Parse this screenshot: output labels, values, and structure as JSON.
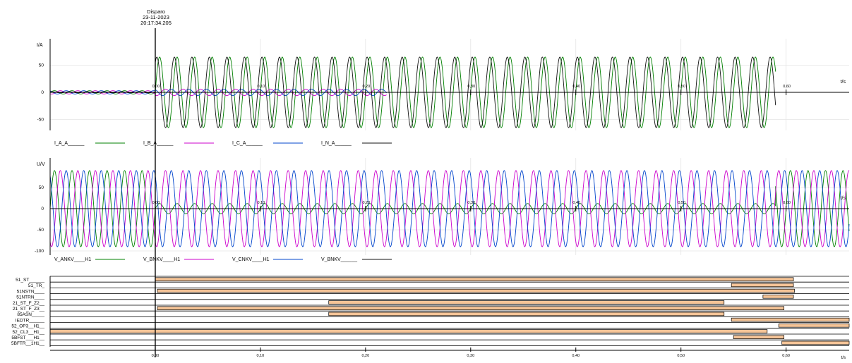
{
  "trigger": {
    "label": "Disparo",
    "date": "23-11-2023",
    "time": "20:17:34.205"
  },
  "chart_data": [
    {
      "type": "line",
      "title": "",
      "xlabel": "t/s",
      "ylabel": "I/A",
      "ylim": [
        -80,
        95
      ],
      "xlim": [
        -0.1,
        0.66
      ],
      "x_ticks": [
        0.0,
        0.1,
        0.2,
        0.3,
        0.4,
        0.5,
        0.6
      ],
      "x_tick_labels": [
        "0,00",
        "0,10",
        "0,20",
        "0,30",
        "0,40",
        "0,50",
        "0,60"
      ],
      "y_ticks": [
        50,
        0,
        -50
      ],
      "y_tick_labels": [
        "50",
        "0",
        "-50"
      ],
      "grid": true,
      "legend_position": "bottom",
      "series": [
        {
          "name": "I_A_A______",
          "color": "#008000",
          "frequency_hz": 60,
          "segments": [
            {
              "t0": -0.1,
              "t1": 0.0,
              "amplitude": 3
            },
            {
              "t0": 0.0,
              "t1": 0.59,
              "amplitude": 65
            }
          ]
        },
        {
          "name": "I_B_A______",
          "color": "#cc00cc",
          "frequency_hz": 60,
          "segments": [
            {
              "t0": -0.1,
              "t1": 0.0,
              "amplitude": 3
            },
            {
              "t0": 0.0,
              "t1": 0.22,
              "amplitude": 6
            }
          ]
        },
        {
          "name": "I_C_A______",
          "color": "#0044cc",
          "frequency_hz": 60,
          "segments": [
            {
              "t0": -0.1,
              "t1": 0.0,
              "amplitude": 3
            },
            {
              "t0": 0.0,
              "t1": 0.22,
              "amplitude": 6
            }
          ]
        },
        {
          "name": "I_N_A______",
          "color": "#111111",
          "frequency_hz": 60,
          "segments": [
            {
              "t0": -0.1,
              "t1": 0.0,
              "amplitude": 1
            },
            {
              "t0": 0.0,
              "t1": 0.59,
              "amplitude": 65
            }
          ]
        }
      ]
    },
    {
      "type": "line",
      "title": "",
      "xlabel": "t/s",
      "ylabel": "U/V",
      "ylim": [
        -100,
        95
      ],
      "xlim": [
        -0.1,
        0.66
      ],
      "x_ticks": [
        0.0,
        0.1,
        0.2,
        0.3,
        0.4,
        0.5,
        0.6
      ],
      "x_tick_labels": [
        "0,00",
        "0,10",
        "0,20",
        "0,30",
        "0,40",
        "0,50",
        "0,60"
      ],
      "y_ticks": [
        50,
        0,
        -50,
        -100
      ],
      "y_tick_labels": [
        "50",
        "0",
        "-50",
        "-100"
      ],
      "grid": true,
      "legend_position": "bottom",
      "series": [
        {
          "name": "V_ANKV____H1",
          "color": "#008000",
          "frequency_hz": 60,
          "segments": [
            {
              "t0": -0.1,
              "t1": 0.0,
              "amplitude": 90
            },
            {
              "t0": 0.0,
              "t1": 0.59,
              "amplitude": 12
            },
            {
              "t0": 0.59,
              "t1": 0.66,
              "amplitude": 90
            }
          ]
        },
        {
          "name": "V_BNKV____H1",
          "color": "#cc00cc",
          "frequency_hz": 60,
          "segments": [
            {
              "t0": -0.1,
              "t1": 0.66,
              "amplitude": 90
            }
          ]
        },
        {
          "name": "V_CNKV____H1",
          "color": "#0044cc",
          "frequency_hz": 60,
          "segments": [
            {
              "t0": -0.1,
              "t1": 0.66,
              "amplitude": 90
            }
          ]
        },
        {
          "name": "V_BNKV______",
          "color": "#111111",
          "frequency_hz": 60,
          "segments": []
        }
      ]
    },
    {
      "type": "digital",
      "xlabel": "t/s",
      "xlim": [
        -0.1,
        0.66
      ],
      "x_ticks": [
        0.0,
        0.1,
        0.2,
        0.3,
        0.4,
        0.5,
        0.6
      ],
      "x_tick_labels": [
        "0,00",
        "0,10",
        "0,20",
        "0,30",
        "0,40",
        "0,50",
        "0,60"
      ],
      "channels": [
        {
          "name": "51_ST______",
          "intervals": [
            [
              0.0,
              0.607
            ]
          ]
        },
        {
          "name": "51_TR_",
          "intervals": [
            [
              0.548,
              0.607
            ]
          ]
        },
        {
          "name": "51NSTN____",
          "intervals": [
            [
              0.002,
              0.608
            ]
          ]
        },
        {
          "name": "51NTRN____",
          "intervals": [
            [
              0.578,
              0.607
            ]
          ]
        },
        {
          "name": "21_ST_F_Z2__",
          "intervals": [
            [
              0.165,
              0.541
            ]
          ]
        },
        {
          "name": "21_ST_F_Z3__",
          "intervals": [
            [
              0.002,
              0.598
            ]
          ]
        },
        {
          "name": "85ASN_____",
          "intervals": [
            [
              0.165,
              0.541
            ]
          ]
        },
        {
          "name": "IEDTR______",
          "intervals": [
            [
              0.548,
              0.66
            ]
          ]
        },
        {
          "name": "52_OP3__H1__",
          "intervals": [
            [
              0.593,
              0.66
            ]
          ]
        },
        {
          "name": "52_CL3__H1__",
          "intervals": [
            [
              -0.1,
              0.582
            ]
          ]
        },
        {
          "name": "5BFST___H1__",
          "intervals": [
            [
              0.55,
              0.598
            ]
          ]
        },
        {
          "name": "5BFTR__1H1__",
          "intervals": [
            [
              0.596,
              0.66
            ]
          ]
        }
      ]
    }
  ]
}
